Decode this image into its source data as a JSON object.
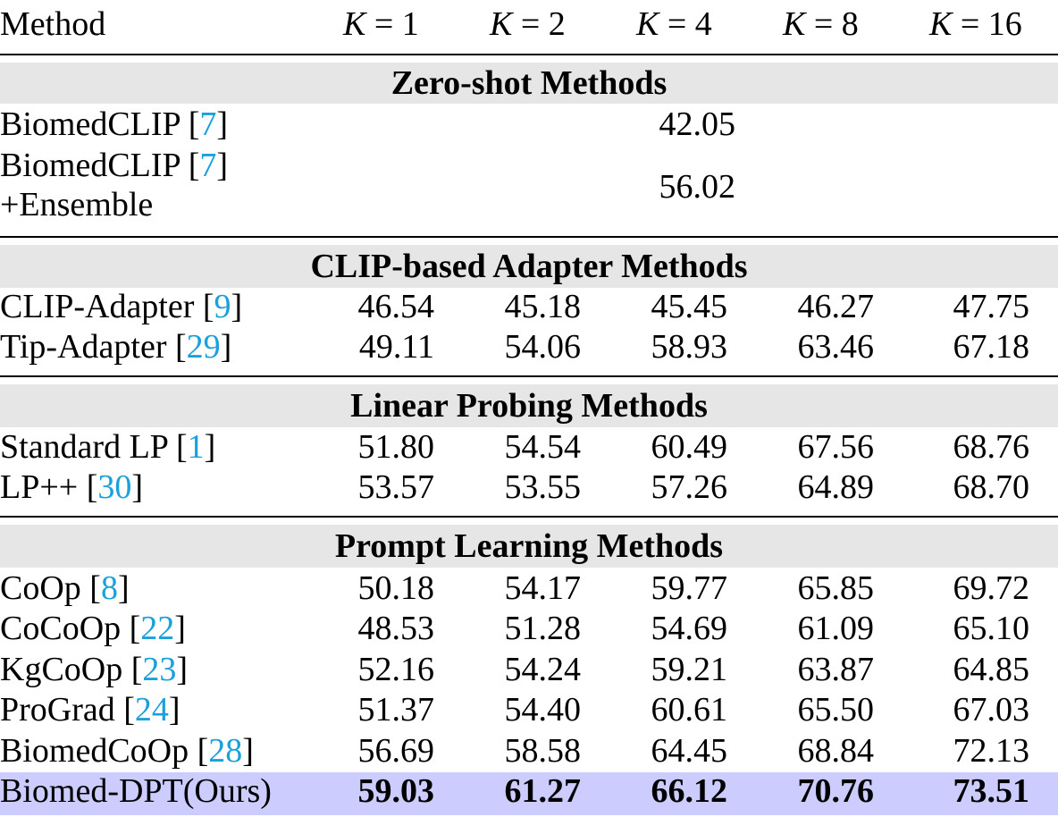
{
  "header": {
    "method": "Method",
    "k_columns": [
      {
        "k": "K",
        "eq": " = ",
        "n": "1"
      },
      {
        "k": "K",
        "eq": " = ",
        "n": "2"
      },
      {
        "k": "K",
        "eq": " = ",
        "n": "4"
      },
      {
        "k": "K",
        "eq": " = ",
        "n": "8"
      },
      {
        "k": "K",
        "eq": " = ",
        "n": "16"
      }
    ]
  },
  "groups": {
    "zero_shot": {
      "title": "Zero-shot Methods",
      "rows": [
        {
          "name": "BiomedCLIP [",
          "ref": "7",
          "close": "]",
          "value": "42.05"
        },
        {
          "name": "BiomedCLIP [",
          "ref": "7",
          "close": "]",
          "name2": "+Ensemble",
          "value": "56.02"
        }
      ]
    },
    "adapter": {
      "title": "CLIP-based Adapter Methods",
      "rows": [
        {
          "name": "CLIP-Adapter [",
          "ref": "9",
          "close": "]",
          "values": [
            "46.54",
            "45.18",
            "45.45",
            "46.27",
            "47.75"
          ]
        },
        {
          "name": "Tip-Adapter [",
          "ref": "29",
          "close": "]",
          "values": [
            "49.11",
            "54.06",
            "58.93",
            "63.46",
            "67.18"
          ]
        }
      ]
    },
    "linear": {
      "title": "Linear Probing Methods",
      "rows": [
        {
          "name": "Standard LP [",
          "ref": "1",
          "close": "]",
          "values": [
            "51.80",
            "54.54",
            "60.49",
            "67.56",
            "68.76"
          ]
        },
        {
          "name": "LP++ [",
          "ref": "30",
          "close": "]",
          "values": [
            "53.57",
            "53.55",
            "57.26",
            "64.89",
            "68.70"
          ]
        }
      ]
    },
    "prompt": {
      "title": "Prompt Learning Methods",
      "rows": [
        {
          "name": "CoOp [",
          "ref": "8",
          "close": "]",
          "values": [
            "50.18",
            "54.17",
            "59.77",
            "65.85",
            "69.72"
          ]
        },
        {
          "name": "CoCoOp [",
          "ref": "22",
          "close": "]",
          "values": [
            "48.53",
            "51.28",
            "54.69",
            "61.09",
            "65.10"
          ]
        },
        {
          "name": "KgCoOp [",
          "ref": "23",
          "close": "]",
          "values": [
            "52.16",
            "54.24",
            "59.21",
            "63.87",
            "64.85"
          ]
        },
        {
          "name": "ProGrad [",
          "ref": "24",
          "close": "]",
          "values": [
            "51.37",
            "54.40",
            "60.61",
            "65.50",
            "67.03"
          ]
        },
        {
          "name": "BiomedCoOp [",
          "ref": "28",
          "close": "]",
          "values": [
            "56.69",
            "58.58",
            "64.45",
            "68.84",
            "72.13"
          ]
        },
        {
          "name": "Biomed-DPT(Ours)",
          "values": [
            "59.03",
            "61.27",
            "66.12",
            "70.76",
            "73.51"
          ]
        }
      ]
    }
  },
  "colors": {
    "group_header_bg": "#e6e6e6",
    "highlight_row_bg": "#ccccff",
    "citation_link": "#1aa0db"
  }
}
